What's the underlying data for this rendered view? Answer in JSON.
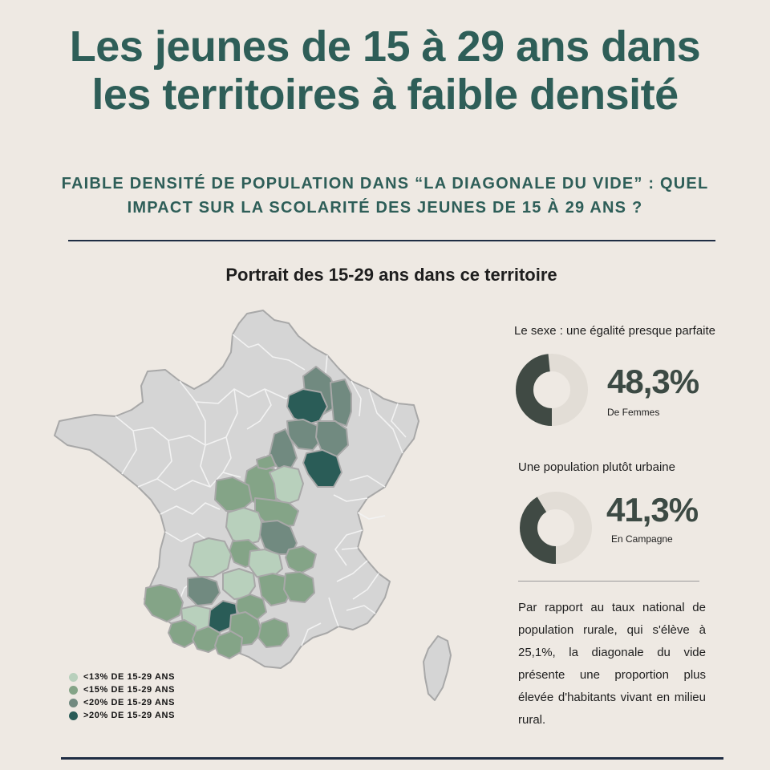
{
  "header": {
    "title_line1": "Les jeunes de 15 à 29 ans dans",
    "title_line2": "les territoires à faible densité",
    "subtitle_line1": "FAIBLE DENSITÉ DE POPULATION DANS “LA DIAGONALE DU VIDE” : QUEL",
    "subtitle_line2": "IMPACT SUR LA SCOLARITÉ DES JEUNES DE 15 À 29 ANS ?"
  },
  "section": {
    "title": "Portrait des 15-29 ans dans ce territoire"
  },
  "colors": {
    "background": "#EEE9E3",
    "title_green": "#2E5E58",
    "rule_navy": "#1F2D44",
    "map_base": "#D5D5D5",
    "map_border": "#A8A8A8",
    "lt13": "#B8D0BC",
    "lt15": "#84A487",
    "lt20": "#718A80",
    "gt20": "#2A5C57",
    "donut_dark": "#404A44",
    "donut_light": "#E2DDD6"
  },
  "legend": [
    {
      "label": "<13% DE 15-29 ANS",
      "color": "#B8D0BC"
    },
    {
      "label": "<15% DE 15-29 ANS",
      "color": "#84A487"
    },
    {
      "label": "<20% DE 15-29 ANS",
      "color": "#718A80"
    },
    {
      "label": ">20% DE 15-29 ANS",
      "color": "#2A5C57"
    }
  ],
  "stats": {
    "sexe": {
      "caption": "Le sexe : une égalité presque parfaite",
      "value": "48,3%",
      "label": "De Femmes",
      "fraction": 0.483
    },
    "urbain": {
      "caption": "Une population plutôt urbaine",
      "value": "41,3%",
      "label": "En Campagne",
      "fraction": 0.413
    }
  },
  "paragraph": "Par rapport au taux national de population rurale, qui s'élève à 25,1%, la diagonale du vide présente une proportion plus élevée d'habitants vivant en milieu rural."
}
